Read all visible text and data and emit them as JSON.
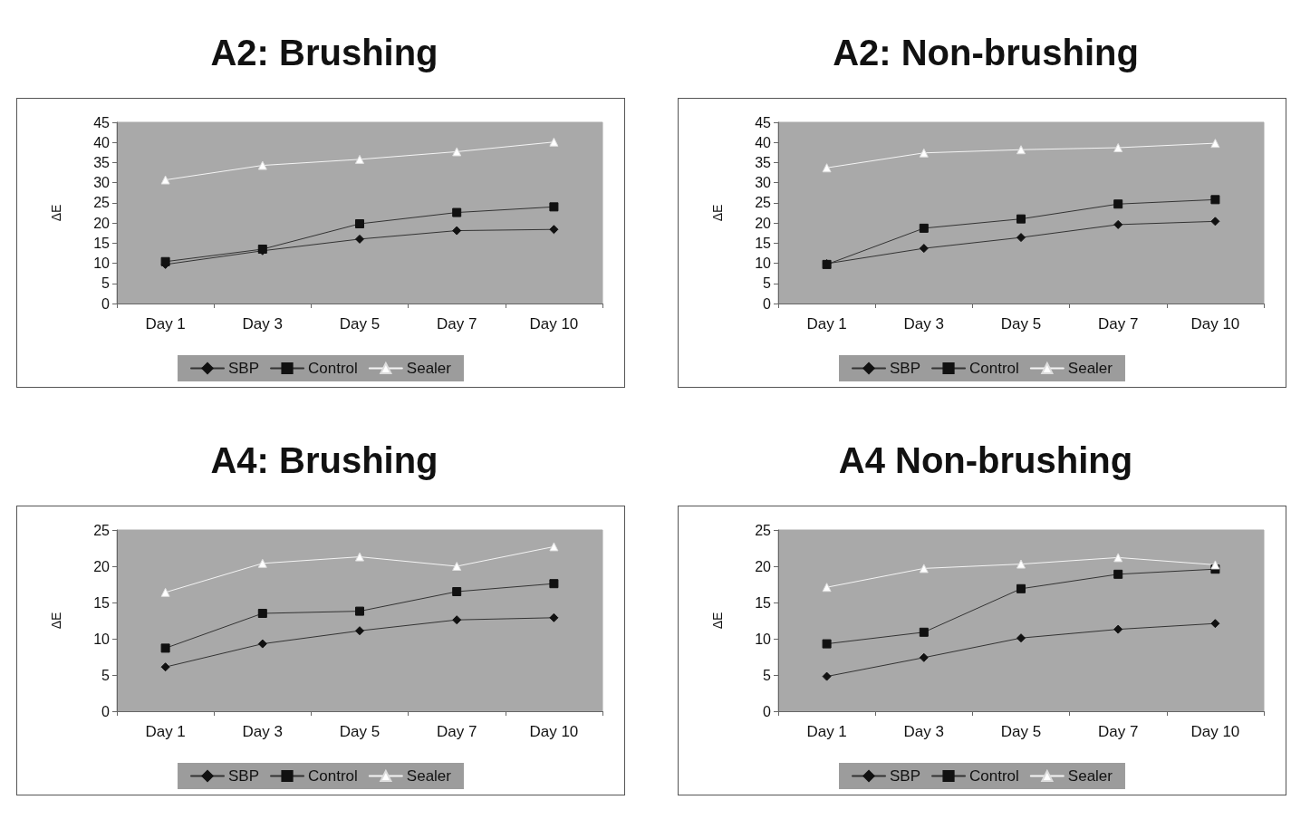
{
  "chart_data": [
    {
      "type": "line",
      "title": "A2: Brushing",
      "ylabel": "ΔE",
      "categories": [
        "Day 1",
        "Day 3",
        "Day 5",
        "Day 7",
        "Day 10"
      ],
      "ylim": [
        0,
        45
      ],
      "yticks": [
        0,
        5,
        10,
        15,
        20,
        25,
        30,
        35,
        40,
        45
      ],
      "grid": false,
      "legend": "bottom",
      "line_style": "solid",
      "series": [
        {
          "name": "SBP",
          "color": "#111111",
          "marker": "diamond",
          "values": [
            9.7,
            13.1,
            16.0,
            18.1,
            18.4
          ]
        },
        {
          "name": "Control",
          "color": "#111111",
          "marker": "square",
          "values": [
            10.4,
            13.5,
            19.8,
            22.6,
            24.0
          ]
        },
        {
          "name": "Sealer",
          "color": "#ffffff",
          "marker": "triangle",
          "values": [
            30.7,
            34.3,
            35.8,
            37.7,
            40.1
          ]
        }
      ]
    },
    {
      "type": "line",
      "title": "A2: Non-brushing",
      "ylabel": "ΔE",
      "categories": [
        "Day 1",
        "Day 3",
        "Day 5",
        "Day 7",
        "Day 10"
      ],
      "ylim": [
        0,
        45
      ],
      "yticks": [
        0,
        5,
        10,
        15,
        20,
        25,
        30,
        35,
        40,
        45
      ],
      "grid": false,
      "legend": "bottom",
      "line_style": "solid",
      "series": [
        {
          "name": "SBP",
          "color": "#111111",
          "marker": "diamond",
          "values": [
            9.9,
            13.7,
            16.4,
            19.6,
            20.4
          ]
        },
        {
          "name": "Control",
          "color": "#111111",
          "marker": "square",
          "values": [
            9.7,
            18.7,
            21.0,
            24.7,
            25.8
          ]
        },
        {
          "name": "Sealer",
          "color": "#ffffff",
          "marker": "triangle",
          "values": [
            33.7,
            37.4,
            38.2,
            38.7,
            39.8
          ]
        }
      ]
    },
    {
      "type": "line",
      "title": "A4:  Brushing",
      "ylabel": "ΔE",
      "categories": [
        "Day 1",
        "Day 3",
        "Day 5",
        "Day 7",
        "Day 10"
      ],
      "ylim": [
        0,
        25
      ],
      "yticks": [
        0,
        5,
        10,
        15,
        20,
        25
      ],
      "grid": false,
      "legend": "bottom",
      "line_style": "solid",
      "series": [
        {
          "name": "SBP",
          "color": "#111111",
          "marker": "diamond",
          "values": [
            6.1,
            9.3,
            11.1,
            12.6,
            12.9
          ]
        },
        {
          "name": "Control",
          "color": "#111111",
          "marker": "square",
          "values": [
            8.7,
            13.5,
            13.8,
            16.5,
            17.6
          ]
        },
        {
          "name": "Sealer",
          "color": "#ffffff",
          "marker": "triangle",
          "values": [
            16.4,
            20.4,
            21.3,
            20.0,
            22.7
          ]
        }
      ]
    },
    {
      "type": "line",
      "title": "A4 Non-brushing",
      "ylabel": "ΔE",
      "categories": [
        "Day 1",
        "Day 3",
        "Day 5",
        "Day 7",
        "Day 10"
      ],
      "ylim": [
        0,
        25
      ],
      "yticks": [
        0,
        5,
        10,
        15,
        20,
        25
      ],
      "grid": false,
      "legend": "bottom",
      "line_style": "solid",
      "series": [
        {
          "name": "SBP",
          "color": "#111111",
          "marker": "diamond",
          "values": [
            4.8,
            7.4,
            10.1,
            11.3,
            12.1
          ]
        },
        {
          "name": "Control",
          "color": "#111111",
          "marker": "square",
          "values": [
            9.3,
            10.9,
            16.9,
            18.9,
            19.6
          ]
        },
        {
          "name": "Sealer",
          "color": "#ffffff",
          "marker": "triangle",
          "values": [
            17.1,
            19.7,
            20.3,
            21.2,
            20.2
          ]
        }
      ]
    }
  ]
}
